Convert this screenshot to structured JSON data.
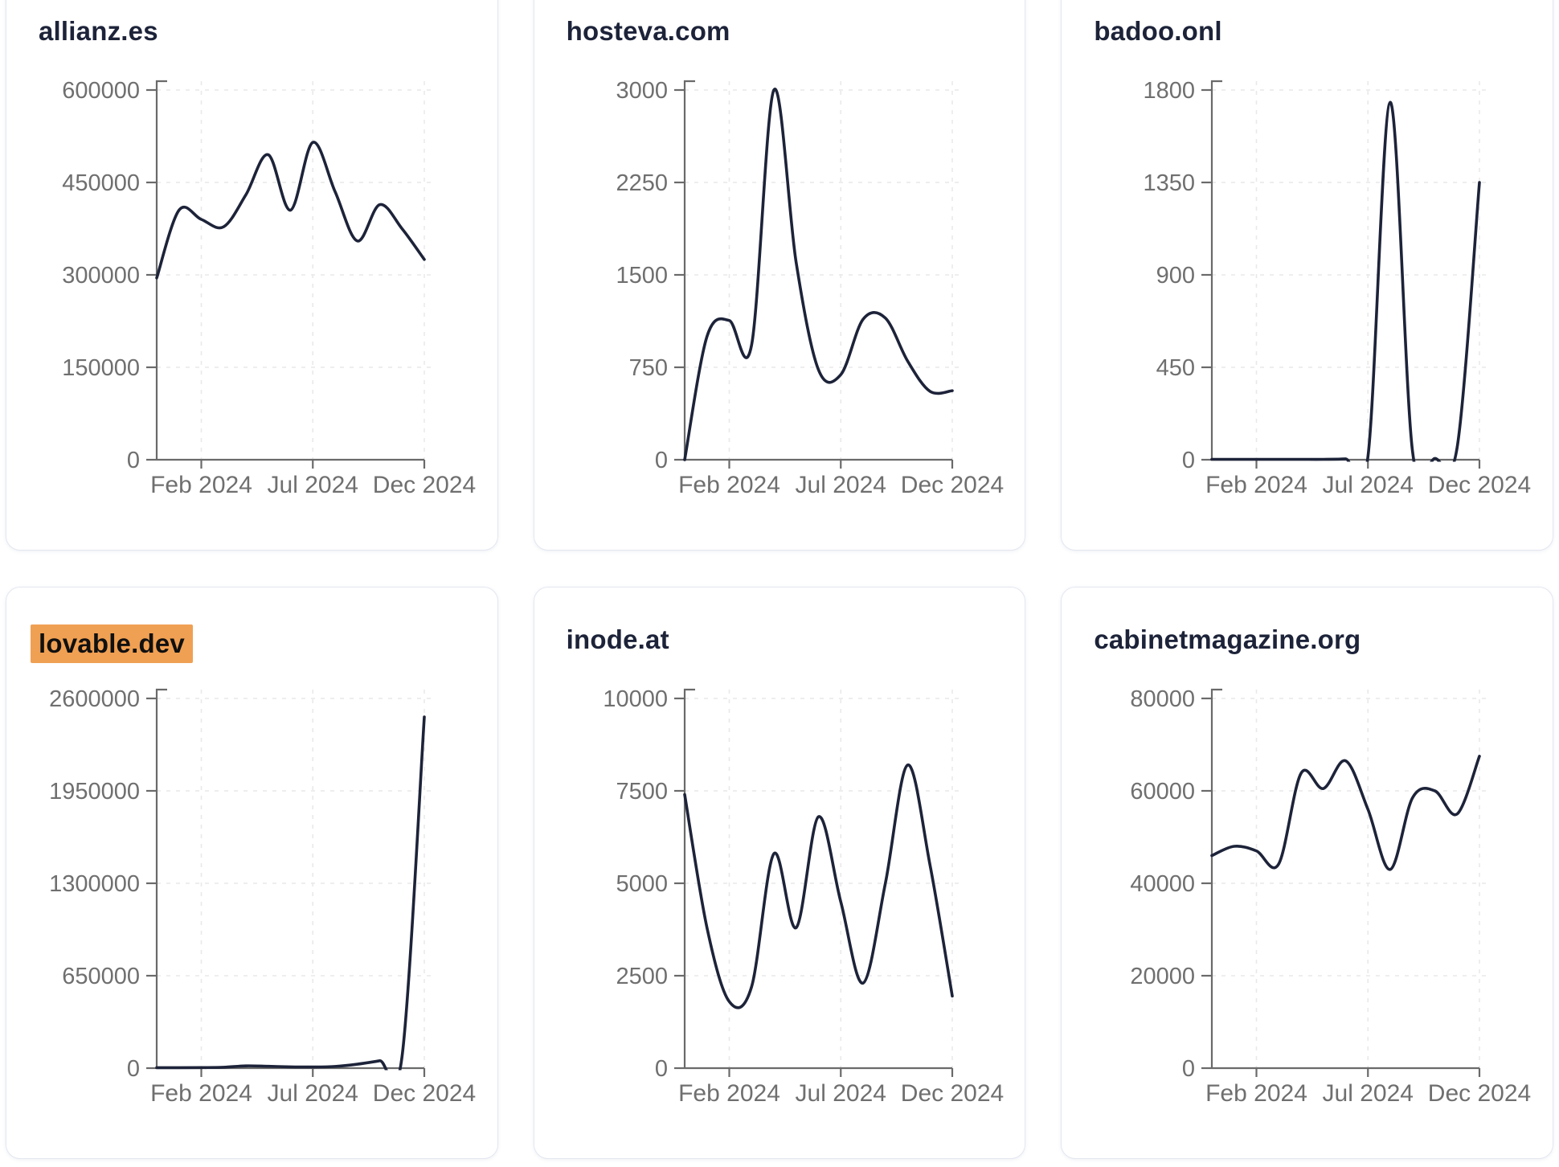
{
  "colors": {
    "line": "#1d2339",
    "title": "#1d2339",
    "axis": "#6a6a6a",
    "tick_label": "#6f6f6f",
    "grid": "#e9e9e9",
    "card_border": "#e4e7f1",
    "card_background": "#ffffff",
    "page_background": "#ffffff",
    "highlight_background": "#f0a053",
    "highlight_text": "#101010"
  },
  "x_tick_labels": [
    "Feb 2024",
    "Jul 2024",
    "Dec 2024"
  ],
  "months": [
    "Dec 2023",
    "Jan 2024",
    "Feb 2024",
    "Mar 2024",
    "Apr 2024",
    "May 2024",
    "Jun 2024",
    "Jul 2024",
    "Aug 2024",
    "Sep 2024",
    "Oct 2024",
    "Nov 2024",
    "Dec 2024"
  ],
  "chart_data": [
    {
      "type": "line",
      "title": "allianz.es",
      "highlighted": false,
      "x": [
        "Dec 2023",
        "Jan 2024",
        "Feb 2024",
        "Mar 2024",
        "Apr 2024",
        "May 2024",
        "Jun 2024",
        "Jul 2024",
        "Aug 2024",
        "Sep 2024",
        "Oct 2024",
        "Nov 2024",
        "Dec 2024"
      ],
      "values": [
        295000,
        405000,
        390000,
        378000,
        430000,
        495000,
        405000,
        515000,
        435000,
        355000,
        414000,
        375000,
        325000
      ],
      "y_ticks": [
        0,
        150000,
        300000,
        450000,
        600000
      ],
      "ylim": [
        0,
        600000
      ],
      "x_tick_labels": [
        "Feb 2024",
        "Jul 2024",
        "Dec 2024"
      ],
      "x_tick_month_indices": [
        2,
        7,
        12
      ],
      "grid": true,
      "legend": "none"
    },
    {
      "type": "line",
      "title": "hosteva.com",
      "highlighted": false,
      "x": [
        "Dec 2023",
        "Jan 2024",
        "Feb 2024",
        "Mar 2024",
        "Apr 2024",
        "May 2024",
        "Jun 2024",
        "Jul 2024",
        "Aug 2024",
        "Sep 2024",
        "Oct 2024",
        "Nov 2024",
        "Dec 2024"
      ],
      "values": [
        0,
        1000,
        1130,
        930,
        3000,
        1600,
        730,
        690,
        1140,
        1150,
        800,
        555,
        560
      ],
      "y_ticks": [
        0,
        750,
        1500,
        2250,
        3000
      ],
      "ylim": [
        0,
        3000
      ],
      "x_tick_labels": [
        "Feb 2024",
        "Jul 2024",
        "Dec 2024"
      ],
      "x_tick_month_indices": [
        2,
        7,
        12
      ],
      "grid": true,
      "legend": "none"
    },
    {
      "type": "line",
      "title": "badoo.onl",
      "highlighted": false,
      "x": [
        "Dec 2023",
        "Jan 2024",
        "Feb 2024",
        "Mar 2024",
        "Apr 2024",
        "May 2024",
        "Jun 2024",
        "Jul 2024",
        "Aug 2024",
        "Sep 2024",
        "Oct 2024",
        "Nov 2024",
        "Dec 2024"
      ],
      "values": [
        2,
        2,
        2,
        2,
        2,
        2,
        4,
        15,
        1740,
        40,
        6,
        60,
        1350
      ],
      "y_ticks": [
        0,
        450,
        900,
        1350,
        1800
      ],
      "ylim": [
        0,
        1800
      ],
      "x_tick_labels": [
        "Feb 2024",
        "Jul 2024",
        "Dec 2024"
      ],
      "x_tick_month_indices": [
        2,
        7,
        12
      ],
      "grid": true,
      "legend": "none"
    },
    {
      "type": "line",
      "title": "lovable.dev",
      "highlighted": true,
      "x": [
        "Dec 2023",
        "Jan 2024",
        "Feb 2024",
        "Mar 2024",
        "Apr 2024",
        "May 2024",
        "Jun 2024",
        "Jul 2024",
        "Aug 2024",
        "Sep 2024",
        "Oct 2024",
        "Nov 2024",
        "Dec 2024"
      ],
      "values": [
        3000,
        3000,
        4000,
        6000,
        16000,
        13000,
        9000,
        8000,
        12000,
        28000,
        52000,
        80000,
        2470000
      ],
      "y_ticks": [
        0,
        650000,
        1300000,
        1950000,
        2600000
      ],
      "ylim": [
        0,
        2600000
      ],
      "x_tick_labels": [
        "Feb 2024",
        "Jul 2024",
        "Dec 2024"
      ],
      "x_tick_month_indices": [
        2,
        7,
        12
      ],
      "grid": true,
      "legend": "none"
    },
    {
      "type": "line",
      "title": "inode.at",
      "highlighted": false,
      "x": [
        "Dec 2023",
        "Jan 2024",
        "Feb 2024",
        "Mar 2024",
        "Apr 2024",
        "May 2024",
        "Jun 2024",
        "Jul 2024",
        "Aug 2024",
        "Sep 2024",
        "Oct 2024",
        "Nov 2024",
        "Dec 2024"
      ],
      "values": [
        7400,
        3800,
        1800,
        2200,
        5800,
        3800,
        6800,
        4500,
        2300,
        5000,
        8200,
        5500,
        1950
      ],
      "y_ticks": [
        0,
        2500,
        5000,
        7500,
        10000
      ],
      "ylim": [
        0,
        10000
      ],
      "x_tick_labels": [
        "Feb 2024",
        "Jul 2024",
        "Dec 2024"
      ],
      "x_tick_month_indices": [
        2,
        7,
        12
      ],
      "grid": true,
      "legend": "none"
    },
    {
      "type": "line",
      "title": "cabinetmagazine.org",
      "highlighted": false,
      "x": [
        "Dec 2023",
        "Jan 2024",
        "Feb 2024",
        "Mar 2024",
        "Apr 2024",
        "May 2024",
        "Jun 2024",
        "Jul 2024",
        "Aug 2024",
        "Sep 2024",
        "Oct 2024",
        "Nov 2024",
        "Dec 2024"
      ],
      "values": [
        46000,
        48000,
        47000,
        44200,
        63800,
        60500,
        66500,
        56000,
        43000,
        58500,
        60000,
        55000,
        67500
      ],
      "y_ticks": [
        0,
        20000,
        40000,
        60000,
        80000
      ],
      "ylim": [
        0,
        80000
      ],
      "x_tick_labels": [
        "Feb 2024",
        "Jul 2024",
        "Dec 2024"
      ],
      "x_tick_month_indices": [
        2,
        7,
        12
      ],
      "grid": true,
      "legend": "none"
    }
  ]
}
